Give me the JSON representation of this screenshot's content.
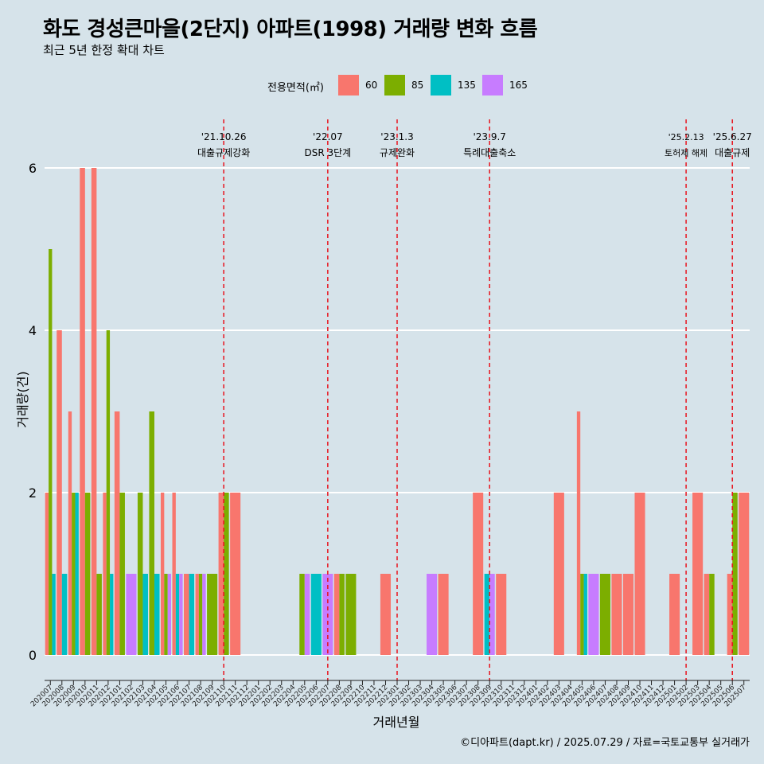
{
  "header": {
    "title": "화도 경성큰마을(2단지) 아파트(1998) 거래량 변화 흐름",
    "subtitle": "최근 5년 한정 확대 차트"
  },
  "legend": {
    "title": "전용면적(㎡)",
    "items": [
      {
        "label": "60",
        "color": "#f8766d"
      },
      {
        "label": "85",
        "color": "#7cae00"
      },
      {
        "label": "135",
        "color": "#00bfc4"
      },
      {
        "label": "165",
        "color": "#c77cff"
      }
    ]
  },
  "caption": "©디아파트(dapt.kr) / 2025.07.29 / 자료=국토교통부 실거래가",
  "chart_data": {
    "type": "bar",
    "xlabel": "거래년월",
    "ylabel": "거래량(건)",
    "ylim": [
      0,
      6
    ],
    "yticks": [
      0,
      2,
      4,
      6
    ],
    "grid": true,
    "legend_position": "top",
    "categories": [
      "202007",
      "202008",
      "202009",
      "202010",
      "202011",
      "202012",
      "202101",
      "202102",
      "202103",
      "202104",
      "202105",
      "202106",
      "202107",
      "202108",
      "202109",
      "202110",
      "202111",
      "202112",
      "202201",
      "202202",
      "202203",
      "202204",
      "202205",
      "202206",
      "202207",
      "202208",
      "202209",
      "202210",
      "202211",
      "202212",
      "202301",
      "202302",
      "202303",
      "202304",
      "202305",
      "202306",
      "202307",
      "202308",
      "202309",
      "202310",
      "202311",
      "202312",
      "202401",
      "202402",
      "202403",
      "202404",
      "202405",
      "202406",
      "202407",
      "202408",
      "202409",
      "202410",
      "202411",
      "202412",
      "202501",
      "202502",
      "202503",
      "202504",
      "202505",
      "202506",
      "202507"
    ],
    "series": [
      {
        "name": "60",
        "color": "#f8766d",
        "values": [
          2,
          4,
          3,
          6,
          6,
          2,
          3,
          0,
          0,
          0,
          2,
          2,
          1,
          1,
          0,
          2,
          2,
          0,
          0,
          0,
          0,
          0,
          0,
          0,
          0,
          1,
          0,
          0,
          0,
          1,
          0,
          0,
          0,
          0,
          1,
          0,
          0,
          2,
          0,
          1,
          0,
          0,
          0,
          0,
          2,
          0,
          3,
          0,
          0,
          1,
          1,
          2,
          0,
          0,
          1,
          0,
          2,
          1,
          0,
          1,
          2
        ]
      },
      {
        "name": "85",
        "color": "#7cae00",
        "values": [
          5,
          0,
          2,
          2,
          1,
          4,
          2,
          0,
          2,
          3,
          1,
          0,
          0,
          1,
          1,
          2,
          0,
          0,
          0,
          0,
          0,
          0,
          1,
          0,
          0,
          1,
          1,
          0,
          0,
          0,
          0,
          0,
          0,
          0,
          0,
          0,
          0,
          0,
          0,
          0,
          0,
          0,
          0,
          0,
          0,
          0,
          1,
          0,
          1,
          0,
          0,
          0,
          0,
          0,
          0,
          0,
          0,
          1,
          0,
          2,
          0
        ]
      },
      {
        "name": "135",
        "color": "#00bfc4",
        "values": [
          1,
          1,
          2,
          0,
          0,
          1,
          0,
          0,
          1,
          1,
          0,
          1,
          1,
          0,
          0,
          0,
          0,
          0,
          0,
          0,
          0,
          0,
          0,
          1,
          0,
          0,
          0,
          0,
          0,
          0,
          0,
          0,
          0,
          0,
          0,
          0,
          0,
          0,
          1,
          0,
          0,
          0,
          0,
          0,
          0,
          0,
          1,
          0,
          0,
          0,
          0,
          0,
          0,
          0,
          0,
          0,
          0,
          0,
          0,
          0,
          0
        ]
      },
      {
        "name": "165",
        "color": "#c77cff",
        "values": [
          0,
          0,
          0,
          0,
          0,
          0,
          0,
          1,
          0,
          0,
          1,
          1,
          0,
          1,
          0,
          0,
          0,
          0,
          0,
          0,
          0,
          0,
          1,
          0,
          1,
          0,
          0,
          0,
          0,
          0,
          0,
          0,
          0,
          1,
          0,
          0,
          0,
          0,
          1,
          0,
          0,
          0,
          0,
          0,
          0,
          0,
          0,
          1,
          0,
          0,
          0,
          0,
          0,
          0,
          0,
          0,
          0,
          0,
          0,
          0,
          0
        ]
      }
    ],
    "annotations": [
      {
        "month": "202110",
        "date": "'21.10.26",
        "label": "대출규제강화"
      },
      {
        "month": "202207",
        "date": "'22.07",
        "label": "DSR 3단계"
      },
      {
        "month": "202301",
        "date": "'23.1.3",
        "label": "규제완화"
      },
      {
        "month": "202309",
        "date": "'23.9.7",
        "label": "특례대출축소"
      },
      {
        "month": "202502",
        "date": "'25.2.13",
        "label": "토허제 해제"
      },
      {
        "month": "202506",
        "date": "'25.6.27",
        "label": "대출규제"
      }
    ]
  }
}
